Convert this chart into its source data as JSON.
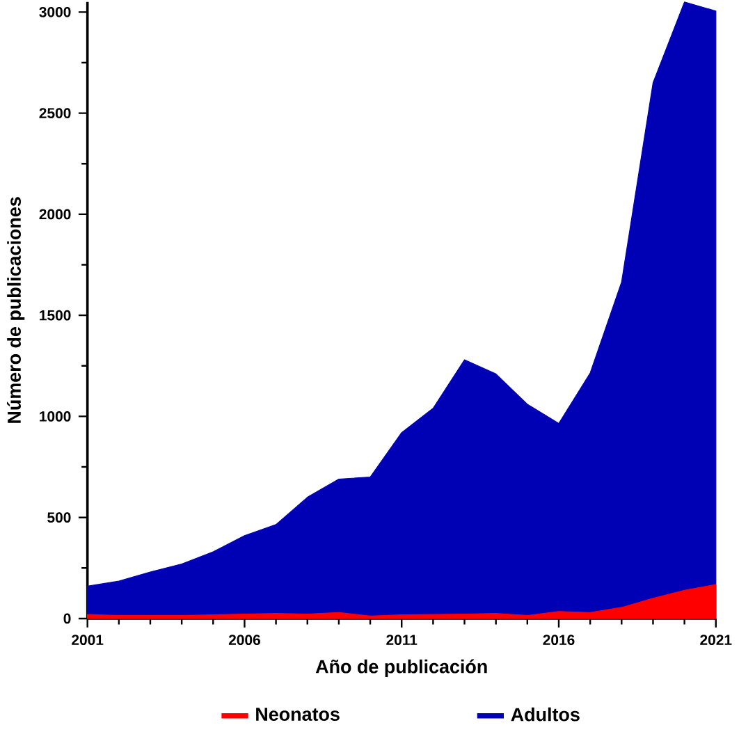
{
  "chart_data": {
    "type": "area",
    "xlabel": "Año de publicación",
    "ylabel": "Número de publicaciones",
    "x": [
      2001,
      2002,
      2003,
      2004,
      2005,
      2006,
      2007,
      2008,
      2009,
      2010,
      2011,
      2012,
      2013,
      2014,
      2015,
      2016,
      2017,
      2018,
      2019,
      2020,
      2021
    ],
    "series": [
      {
        "name": "Neonatos",
        "color": "#ff0000",
        "values": [
          20,
          15,
          15,
          15,
          18,
          22,
          25,
          22,
          30,
          12,
          18,
          20,
          22,
          25,
          15,
          35,
          30,
          55,
          100,
          140,
          168
        ]
      },
      {
        "name": "Adultos",
        "color": "#0000b4",
        "values": [
          160,
          185,
          230,
          270,
          330,
          410,
          465,
          600,
          690,
          700,
          920,
          1040,
          1280,
          1210,
          1060,
          965,
          1215,
          1665,
          2650,
          3050,
          3005
        ]
      }
    ],
    "xlim": [
      2001,
      2021
    ],
    "xticks": [
      2001,
      2006,
      2011,
      2016,
      2021
    ],
    "ylim": [
      0,
      3050
    ],
    "yticks": [
      0,
      500,
      1000,
      1500,
      2000,
      2500,
      3000
    ],
    "legend": "bottom",
    "grid": false
  }
}
